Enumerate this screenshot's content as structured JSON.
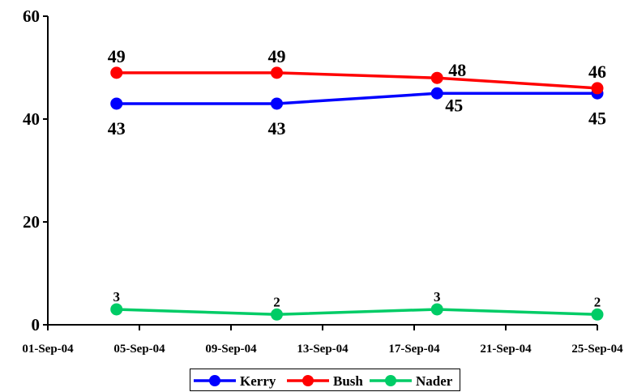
{
  "chart_data": {
    "type": "line",
    "title": "",
    "xlabel": "",
    "ylabel": "",
    "x_tick_labels": [
      "01-Sep-04",
      "05-Sep-04",
      "09-Sep-04",
      "13-Sep-04",
      "17-Sep-04",
      "21-Sep-04",
      "25-Sep-04"
    ],
    "x_tick_dates": [
      "2004-09-01",
      "2004-09-05",
      "2004-09-09",
      "2004-09-13",
      "2004-09-17",
      "2004-09-21",
      "2004-09-25"
    ],
    "y_ticks": [
      0,
      20,
      40,
      60
    ],
    "ylim": [
      0,
      60
    ],
    "xlim": [
      "2004-09-01",
      "2004-09-25"
    ],
    "grid": false,
    "legend_position": "bottom",
    "x": [
      "2004-09-04",
      "2004-09-11",
      "2004-09-18",
      "2004-09-25"
    ],
    "series": [
      {
        "name": "Kerry",
        "color": "#0000ff",
        "values": [
          43,
          43,
          45,
          45
        ],
        "labels": [
          "43",
          "43",
          "45",
          "45"
        ]
      },
      {
        "name": "Bush",
        "color": "#ff0000",
        "values": [
          49,
          49,
          48,
          46
        ],
        "labels": [
          "49",
          "49",
          "48",
          "46"
        ]
      },
      {
        "name": "Nader",
        "color": "#00cc66",
        "values": [
          3,
          2,
          3,
          2
        ],
        "labels": [
          "3",
          "2",
          "3",
          "2"
        ]
      }
    ]
  }
}
